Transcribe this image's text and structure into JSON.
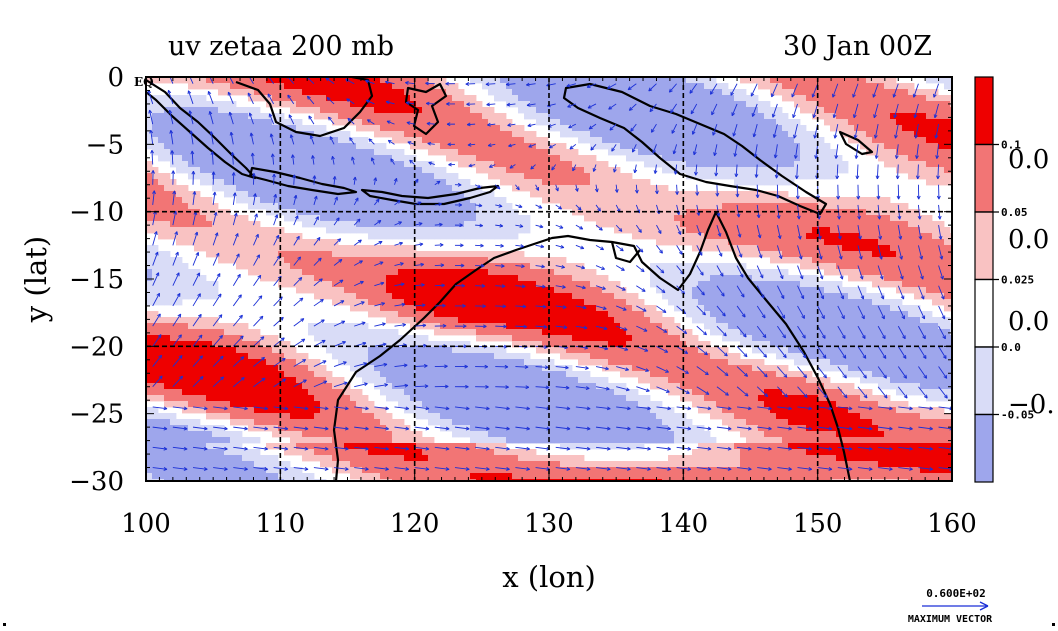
{
  "chart_data": {
    "type": "heatmap",
    "title_left": "uv zetaa 200 mb",
    "title_right": "30 Jan 00Z",
    "xlabel": "x (lon)",
    "ylabel": "y (lat)",
    "xlim": [
      100,
      160
    ],
    "ylim": [
      -30,
      0
    ],
    "x_ticks": [
      "100",
      "110",
      "120",
      "130",
      "140",
      "150",
      "160"
    ],
    "y_ticks": [
      "0",
      "−5",
      "−10",
      "−15",
      "−20",
      "−25",
      "−30"
    ],
    "grid": true,
    "corner_label": "EQ",
    "colorbar": {
      "placement": "right",
      "colors": [
        "#ee0000",
        "#f27575",
        "#f9c2c2",
        "#ffffff",
        "#d9dcf7",
        "#9ea6ec"
      ],
      "boundary_labels": [
        "0.1",
        "0.05",
        "0.025",
        "0.0",
        "-0.05"
      ],
      "large_labels": [
        "0.0",
        "0.0",
        "0.0",
        "−0."
      ]
    },
    "vector_legend": {
      "value": "0.600E+02",
      "label": "MAXIMUM VECTOR"
    }
  },
  "colors": {
    "vector": "#1a2fd6",
    "coast": "#000000",
    "pos_strong": "#ee0000",
    "pos_mid": "#f27575",
    "pos_weak": "#f9c2c2",
    "neg_weak": "#d9dcf7",
    "neg_strong": "#9ea6ec",
    "contour_red": "#d40000",
    "contour_blue": "#7f88e6"
  }
}
